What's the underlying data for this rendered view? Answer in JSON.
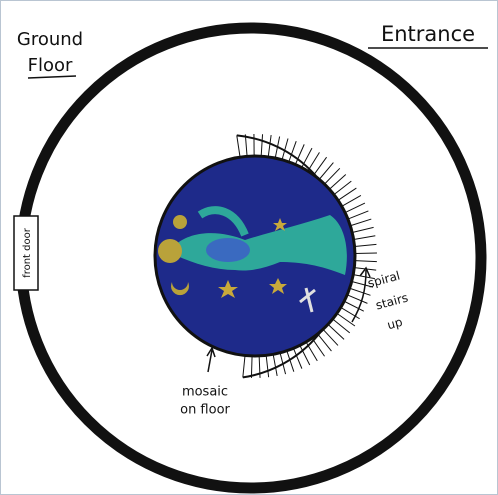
{
  "labels": {
    "title": [
      "Ground",
      "Floor"
    ],
    "entrance": "Entrance",
    "front_door": "front door",
    "stairs": [
      "spiral",
      "stairs",
      "up"
    ],
    "mosaic": [
      "mosaic",
      "on floor"
    ]
  }
}
